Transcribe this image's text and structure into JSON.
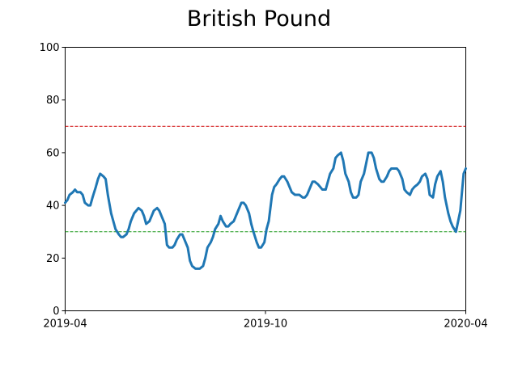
{
  "chart_data": {
    "type": "line",
    "title": "British Pound",
    "xlabel": "",
    "ylabel": "",
    "ylim": [
      0,
      100
    ],
    "xlim": [
      "2019-04-01",
      "2020-04-01"
    ],
    "yticks": [
      0,
      20,
      40,
      60,
      80,
      100
    ],
    "xticks": [
      "2019-04",
      "2019-10",
      "2020-04"
    ],
    "grid": false,
    "reference_lines": [
      {
        "y": 70,
        "style": "dashed",
        "color": "#d62728"
      },
      {
        "y": 30,
        "style": "dashed",
        "color": "#2ca02c"
      }
    ],
    "series": [
      {
        "color": "#1f77b4",
        "x": [
          "2019-04-01",
          "2019-04-03",
          "2019-04-05",
          "2019-04-08",
          "2019-04-10",
          "2019-04-12",
          "2019-04-15",
          "2019-04-17",
          "2019-04-19",
          "2019-04-22",
          "2019-04-24",
          "2019-04-26",
          "2019-04-29",
          "2019-05-01",
          "2019-05-03",
          "2019-05-06",
          "2019-05-08",
          "2019-05-10",
          "2019-05-13",
          "2019-05-15",
          "2019-05-17",
          "2019-05-20",
          "2019-05-22",
          "2019-05-24",
          "2019-05-27",
          "2019-05-29",
          "2019-05-31",
          "2019-06-03",
          "2019-06-05",
          "2019-06-07",
          "2019-06-10",
          "2019-06-12",
          "2019-06-14",
          "2019-06-17",
          "2019-06-19",
          "2019-06-21",
          "2019-06-24",
          "2019-06-26",
          "2019-06-28",
          "2019-07-01",
          "2019-07-03",
          "2019-07-05",
          "2019-07-08",
          "2019-07-10",
          "2019-07-12",
          "2019-07-15",
          "2019-07-17",
          "2019-07-19",
          "2019-07-22",
          "2019-07-24",
          "2019-07-26",
          "2019-07-29",
          "2019-07-31",
          "2019-08-02",
          "2019-08-05",
          "2019-08-07",
          "2019-08-09",
          "2019-08-12",
          "2019-08-14",
          "2019-08-16",
          "2019-08-19",
          "2019-08-21",
          "2019-08-23",
          "2019-08-26",
          "2019-08-28",
          "2019-08-30",
          "2019-09-02",
          "2019-09-04",
          "2019-09-06",
          "2019-09-09",
          "2019-09-11",
          "2019-09-13",
          "2019-09-16",
          "2019-09-18",
          "2019-09-20",
          "2019-09-23",
          "2019-09-25",
          "2019-09-27",
          "2019-09-30",
          "2019-10-02",
          "2019-10-04",
          "2019-10-07",
          "2019-10-09",
          "2019-10-11",
          "2019-10-14",
          "2019-10-16",
          "2019-10-18",
          "2019-10-21",
          "2019-10-23",
          "2019-10-25",
          "2019-10-28",
          "2019-10-30",
          "2019-11-01",
          "2019-11-04",
          "2019-11-06",
          "2019-11-08",
          "2019-11-11",
          "2019-11-13",
          "2019-11-15",
          "2019-11-18",
          "2019-11-20",
          "2019-11-22",
          "2019-11-25",
          "2019-11-27",
          "2019-11-29",
          "2019-12-02",
          "2019-12-04",
          "2019-12-06",
          "2019-12-09",
          "2019-12-11",
          "2019-12-13",
          "2019-12-16",
          "2019-12-18",
          "2019-12-20",
          "2019-12-23",
          "2019-12-25",
          "2019-12-27",
          "2019-12-30",
          "2020-01-01",
          "2020-01-03",
          "2020-01-06",
          "2020-01-08",
          "2020-01-10",
          "2020-01-13",
          "2020-01-15",
          "2020-01-17",
          "2020-01-20",
          "2020-01-22",
          "2020-01-24",
          "2020-01-27",
          "2020-01-29",
          "2020-01-31",
          "2020-02-03",
          "2020-02-05",
          "2020-02-07",
          "2020-02-10",
          "2020-02-12",
          "2020-02-14",
          "2020-02-17",
          "2020-02-19",
          "2020-02-21",
          "2020-02-24",
          "2020-02-26",
          "2020-02-28",
          "2020-03-02",
          "2020-03-04",
          "2020-03-06",
          "2020-03-09",
          "2020-03-11",
          "2020-03-13",
          "2020-03-16",
          "2020-03-18",
          "2020-03-20",
          "2020-03-23",
          "2020-03-25",
          "2020-03-27",
          "2020-03-30",
          "2020-04-01"
        ],
        "values": [
          41,
          42,
          44,
          45,
          46,
          45,
          45,
          44,
          41,
          40,
          40,
          43,
          47,
          50,
          52,
          51,
          50,
          44,
          37,
          34,
          31,
          29,
          28,
          28,
          29,
          31,
          34,
          37,
          38,
          39,
          38,
          36,
          33,
          34,
          36,
          38,
          39,
          38,
          36,
          33,
          25,
          24,
          24,
          25,
          27,
          29,
          29,
          27,
          24,
          19,
          17,
          16,
          16,
          16,
          17,
          20,
          24,
          26,
          28,
          31,
          33,
          36,
          34,
          32,
          32,
          33,
          34,
          36,
          38,
          41,
          41,
          40,
          37,
          33,
          30,
          26,
          24,
          24,
          26,
          31,
          34,
          44,
          47,
          48,
          50,
          51,
          51,
          49,
          47,
          45,
          44,
          44,
          44,
          43,
          43,
          44,
          47,
          49,
          49,
          48,
          47,
          46,
          46,
          49,
          52,
          54,
          58,
          59,
          60,
          57,
          52,
          49,
          45,
          43,
          43,
          44,
          49,
          52,
          56,
          60,
          60,
          58,
          54,
          50,
          49,
          49,
          51,
          53,
          54,
          54,
          54,
          53,
          50,
          46,
          45,
          44,
          46,
          47,
          48,
          49,
          51,
          52,
          50,
          44,
          43,
          48,
          51,
          53,
          49,
          43,
          37,
          34,
          32,
          30,
          34,
          38,
          52,
          54
        ]
      }
    ]
  }
}
